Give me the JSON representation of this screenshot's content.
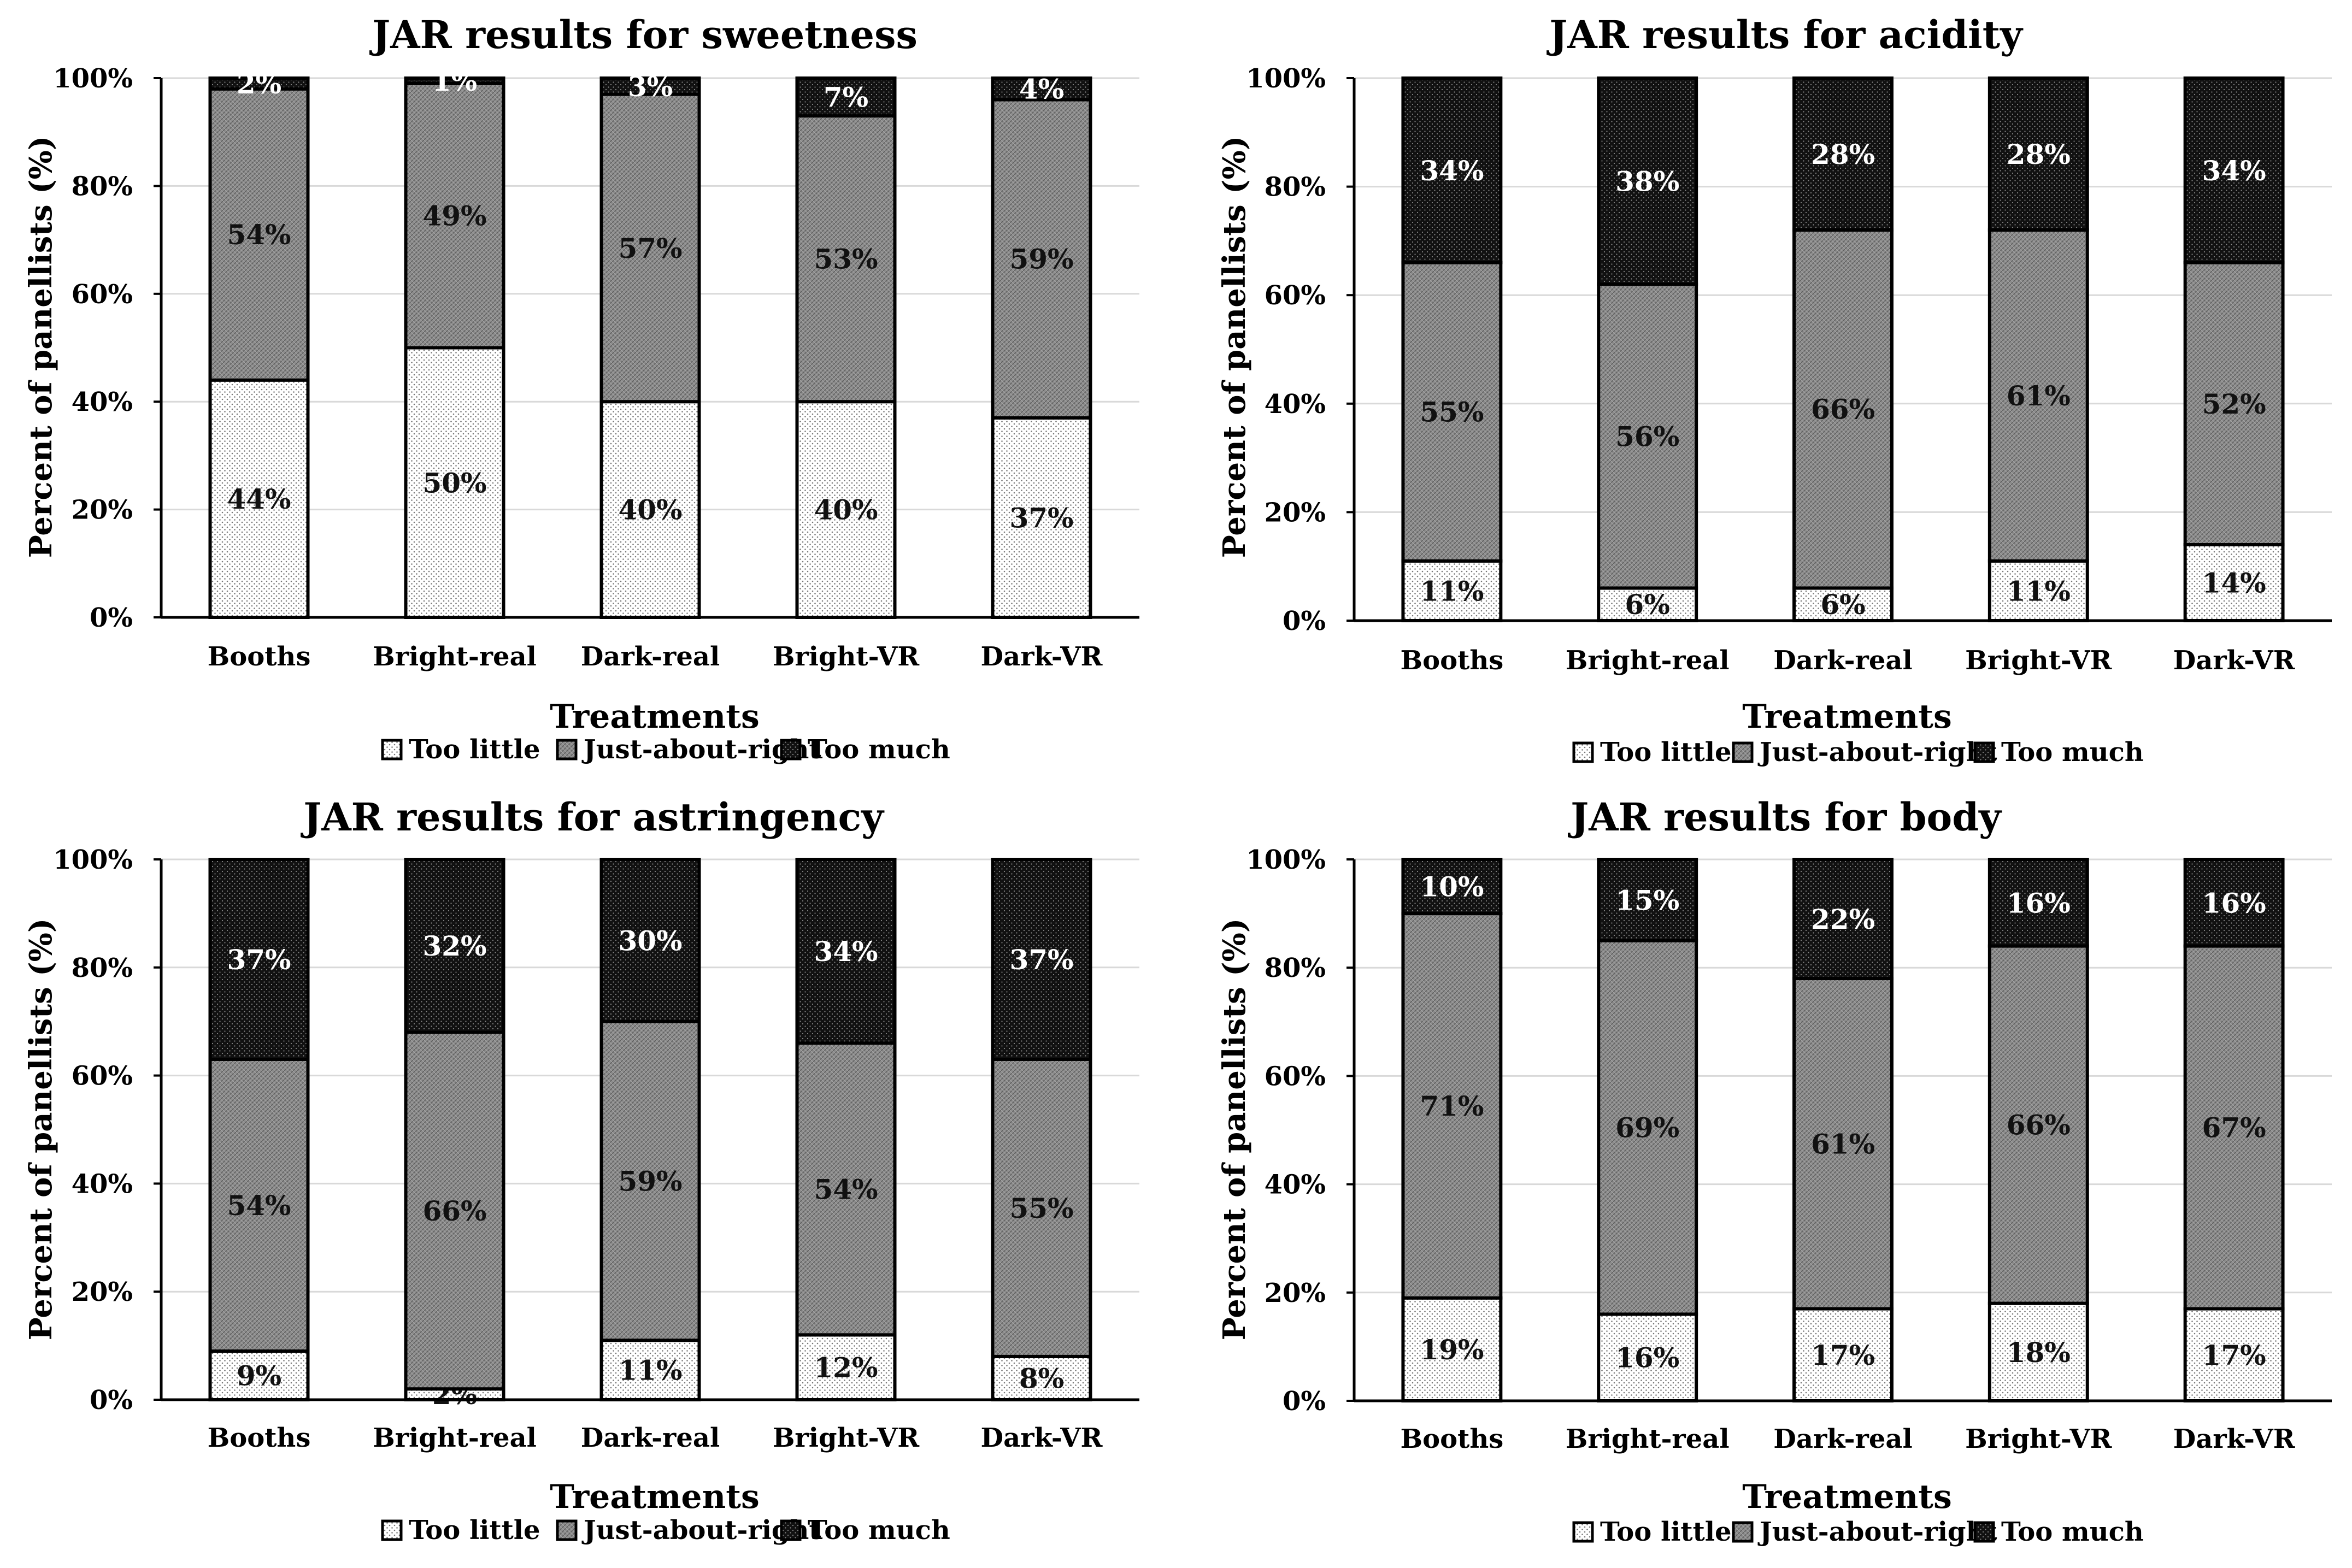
{
  "colors": {
    "too_little": "#ffffff",
    "just_about_right": "#8c8c8c",
    "too_much": "#111111",
    "grid": "#d9d9d9",
    "axis": "#000000"
  },
  "chart_data": [
    {
      "type": "bar",
      "stacked": true,
      "title": "JAR results for sweetness",
      "xlabel": "Treatments",
      "ylabel": "Percent of panellists (%)",
      "ylim": [
        0,
        100
      ],
      "yticks": [
        "0%",
        "20%",
        "40%",
        "60%",
        "80%",
        "100%"
      ],
      "grid": true,
      "legend_position": "bottom",
      "categories": [
        "Booths",
        "Bright-real",
        "Dark-real",
        "Bright-VR",
        "Dark-VR"
      ],
      "series": [
        {
          "name": "Too little",
          "values": [
            44,
            50,
            40,
            40,
            37
          ],
          "labels": [
            "44%",
            "50%",
            "40%",
            "40%",
            "37%"
          ]
        },
        {
          "name": "Just-about-right",
          "values": [
            54,
            49,
            57,
            53,
            59
          ],
          "labels": [
            "54%",
            "49%",
            "57%",
            "53%",
            "59%"
          ]
        },
        {
          "name": "Too much",
          "values": [
            2,
            1,
            3,
            7,
            4
          ],
          "labels": [
            "2%",
            "1%",
            "3%",
            "7%",
            "4%"
          ]
        }
      ]
    },
    {
      "type": "bar",
      "stacked": true,
      "title": "JAR results for acidity",
      "xlabel": "Treatments",
      "ylabel": "Percent of panellists (%)",
      "ylim": [
        0,
        100
      ],
      "yticks": [
        "0%",
        "20%",
        "40%",
        "60%",
        "80%",
        "100%"
      ],
      "grid": true,
      "legend_position": "bottom",
      "categories": [
        "Booths",
        "Bright-real",
        "Dark-real",
        "Bright-VR",
        "Dark-VR"
      ],
      "series": [
        {
          "name": "Too little",
          "values": [
            11,
            6,
            6,
            11,
            14
          ],
          "labels": [
            "11%",
            "6%",
            "6%",
            "11%",
            "14%"
          ]
        },
        {
          "name": "Just-about-right",
          "values": [
            55,
            56,
            66,
            61,
            52
          ],
          "labels": [
            "55%",
            "56%",
            "66%",
            "61%",
            "52%"
          ]
        },
        {
          "name": "Too much",
          "values": [
            34,
            38,
            28,
            28,
            34
          ],
          "labels": [
            "34%",
            "38%",
            "28%",
            "28%",
            "34%"
          ]
        }
      ]
    },
    {
      "type": "bar",
      "stacked": true,
      "title": "JAR results for astringency",
      "xlabel": "Treatments",
      "ylabel": "Percent of panellists (%)",
      "ylim": [
        0,
        100
      ],
      "yticks": [
        "0%",
        "20%",
        "40%",
        "60%",
        "80%",
        "100%"
      ],
      "grid": true,
      "legend_position": "bottom",
      "categories": [
        "Booths",
        "Bright-real",
        "Dark-real",
        "Bright-VR",
        "Dark-VR"
      ],
      "series": [
        {
          "name": "Too little",
          "values": [
            9,
            2,
            11,
            12,
            8
          ],
          "labels": [
            "9%",
            "2%",
            "11%",
            "12%",
            "8%"
          ]
        },
        {
          "name": "Just-about-right",
          "values": [
            54,
            66,
            59,
            54,
            55
          ],
          "labels": [
            "54%",
            "66%",
            "59%",
            "54%",
            "55%"
          ]
        },
        {
          "name": "Too much",
          "values": [
            37,
            32,
            30,
            34,
            37
          ],
          "labels": [
            "37%",
            "32%",
            "30%",
            "34%",
            "37%"
          ]
        }
      ]
    },
    {
      "type": "bar",
      "stacked": true,
      "title": "JAR results for body",
      "xlabel": "Treatments",
      "ylabel": "Percent of panellists (%)",
      "ylim": [
        0,
        100
      ],
      "yticks": [
        "0%",
        "20%",
        "40%",
        "60%",
        "80%",
        "100%"
      ],
      "grid": true,
      "legend_position": "bottom",
      "categories": [
        "Booths",
        "Bright-real",
        "Dark-real",
        "Bright-VR",
        "Dark-VR"
      ],
      "series": [
        {
          "name": "Too little",
          "values": [
            19,
            16,
            17,
            18,
            17
          ],
          "labels": [
            "19%",
            "16%",
            "17%",
            "18%",
            "17%"
          ]
        },
        {
          "name": "Just-about-right",
          "values": [
            71,
            69,
            61,
            66,
            67
          ],
          "labels": [
            "71%",
            "69%",
            "61%",
            "66%",
            "67%"
          ]
        },
        {
          "name": "Too much",
          "values": [
            10,
            15,
            22,
            16,
            16
          ],
          "labels": [
            "10%",
            "15%",
            "22%",
            "16%",
            "16%"
          ]
        }
      ]
    }
  ]
}
